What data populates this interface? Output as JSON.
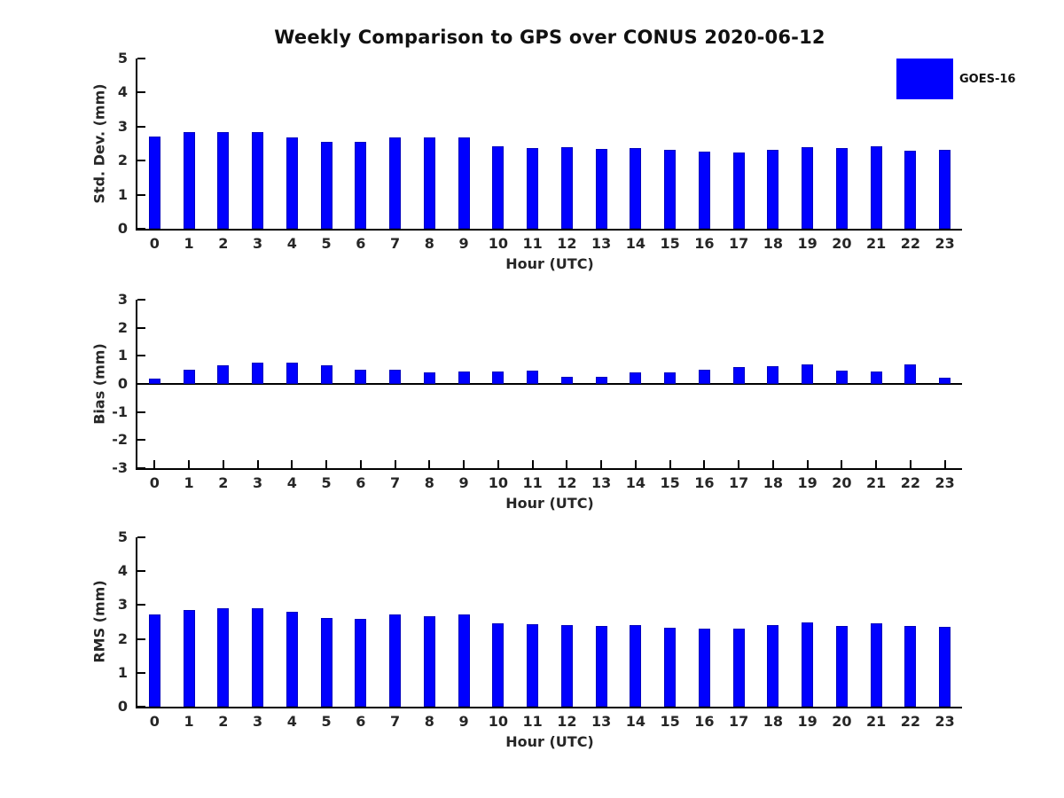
{
  "title": "Weekly Comparison to GPS over CONUS 2020-06-12",
  "legend": {
    "label": "GOES-16",
    "color": "#0000fe"
  },
  "colors": {
    "bar": "#0000fe",
    "bar_edge": "#0000bf",
    "axis": "#000000",
    "text": "#262626"
  },
  "chart_data": [
    {
      "type": "bar",
      "series_name": "GOES-16",
      "ylabel": "Std. Dev. (mm)",
      "xlabel": "Hour (UTC)",
      "categories": [
        0,
        1,
        2,
        3,
        4,
        5,
        6,
        7,
        8,
        9,
        10,
        11,
        12,
        13,
        14,
        15,
        16,
        17,
        18,
        19,
        20,
        21,
        22,
        23
      ],
      "values": [
        2.72,
        2.83,
        2.83,
        2.83,
        2.69,
        2.54,
        2.54,
        2.67,
        2.67,
        2.67,
        2.41,
        2.38,
        2.4,
        2.34,
        2.37,
        2.31,
        2.26,
        2.23,
        2.31,
        2.39,
        2.36,
        2.42,
        2.28,
        2.33
      ],
      "ylim": [
        0,
        5
      ],
      "yticks": [
        0,
        1,
        2,
        3,
        4,
        5
      ],
      "grid": false,
      "legend_position": "upper right outside"
    },
    {
      "type": "bar",
      "series_name": "GOES-16",
      "ylabel": "Bias (mm)",
      "xlabel": "Hour (UTC)",
      "categories": [
        0,
        1,
        2,
        3,
        4,
        5,
        6,
        7,
        8,
        9,
        10,
        11,
        12,
        13,
        14,
        15,
        16,
        17,
        18,
        19,
        20,
        21,
        22,
        23
      ],
      "values": [
        0.2,
        0.52,
        0.67,
        0.77,
        0.76,
        0.67,
        0.52,
        0.52,
        0.4,
        0.43,
        0.43,
        0.46,
        0.25,
        0.25,
        0.4,
        0.4,
        0.51,
        0.61,
        0.64,
        0.7,
        0.47,
        0.45,
        0.7,
        0.21
      ],
      "ylim": [
        -3,
        3
      ],
      "yticks": [
        -3,
        -2,
        -1,
        0,
        1,
        2,
        3
      ],
      "grid": false,
      "zero_line": true
    },
    {
      "type": "bar",
      "series_name": "GOES-16",
      "ylabel": "RMS (mm)",
      "xlabel": "Hour (UTC)",
      "categories": [
        0,
        1,
        2,
        3,
        4,
        5,
        6,
        7,
        8,
        9,
        10,
        11,
        12,
        13,
        14,
        15,
        16,
        17,
        18,
        19,
        20,
        21,
        22,
        23
      ],
      "values": [
        2.73,
        2.86,
        2.9,
        2.9,
        2.81,
        2.63,
        2.59,
        2.71,
        2.68,
        2.71,
        2.45,
        2.43,
        2.42,
        2.37,
        2.41,
        2.34,
        2.31,
        2.31,
        2.4,
        2.49,
        2.39,
        2.46,
        2.39,
        2.36
      ],
      "ylim": [
        0,
        5
      ],
      "yticks": [
        0,
        1,
        2,
        3,
        4,
        5
      ],
      "grid": false
    }
  ]
}
